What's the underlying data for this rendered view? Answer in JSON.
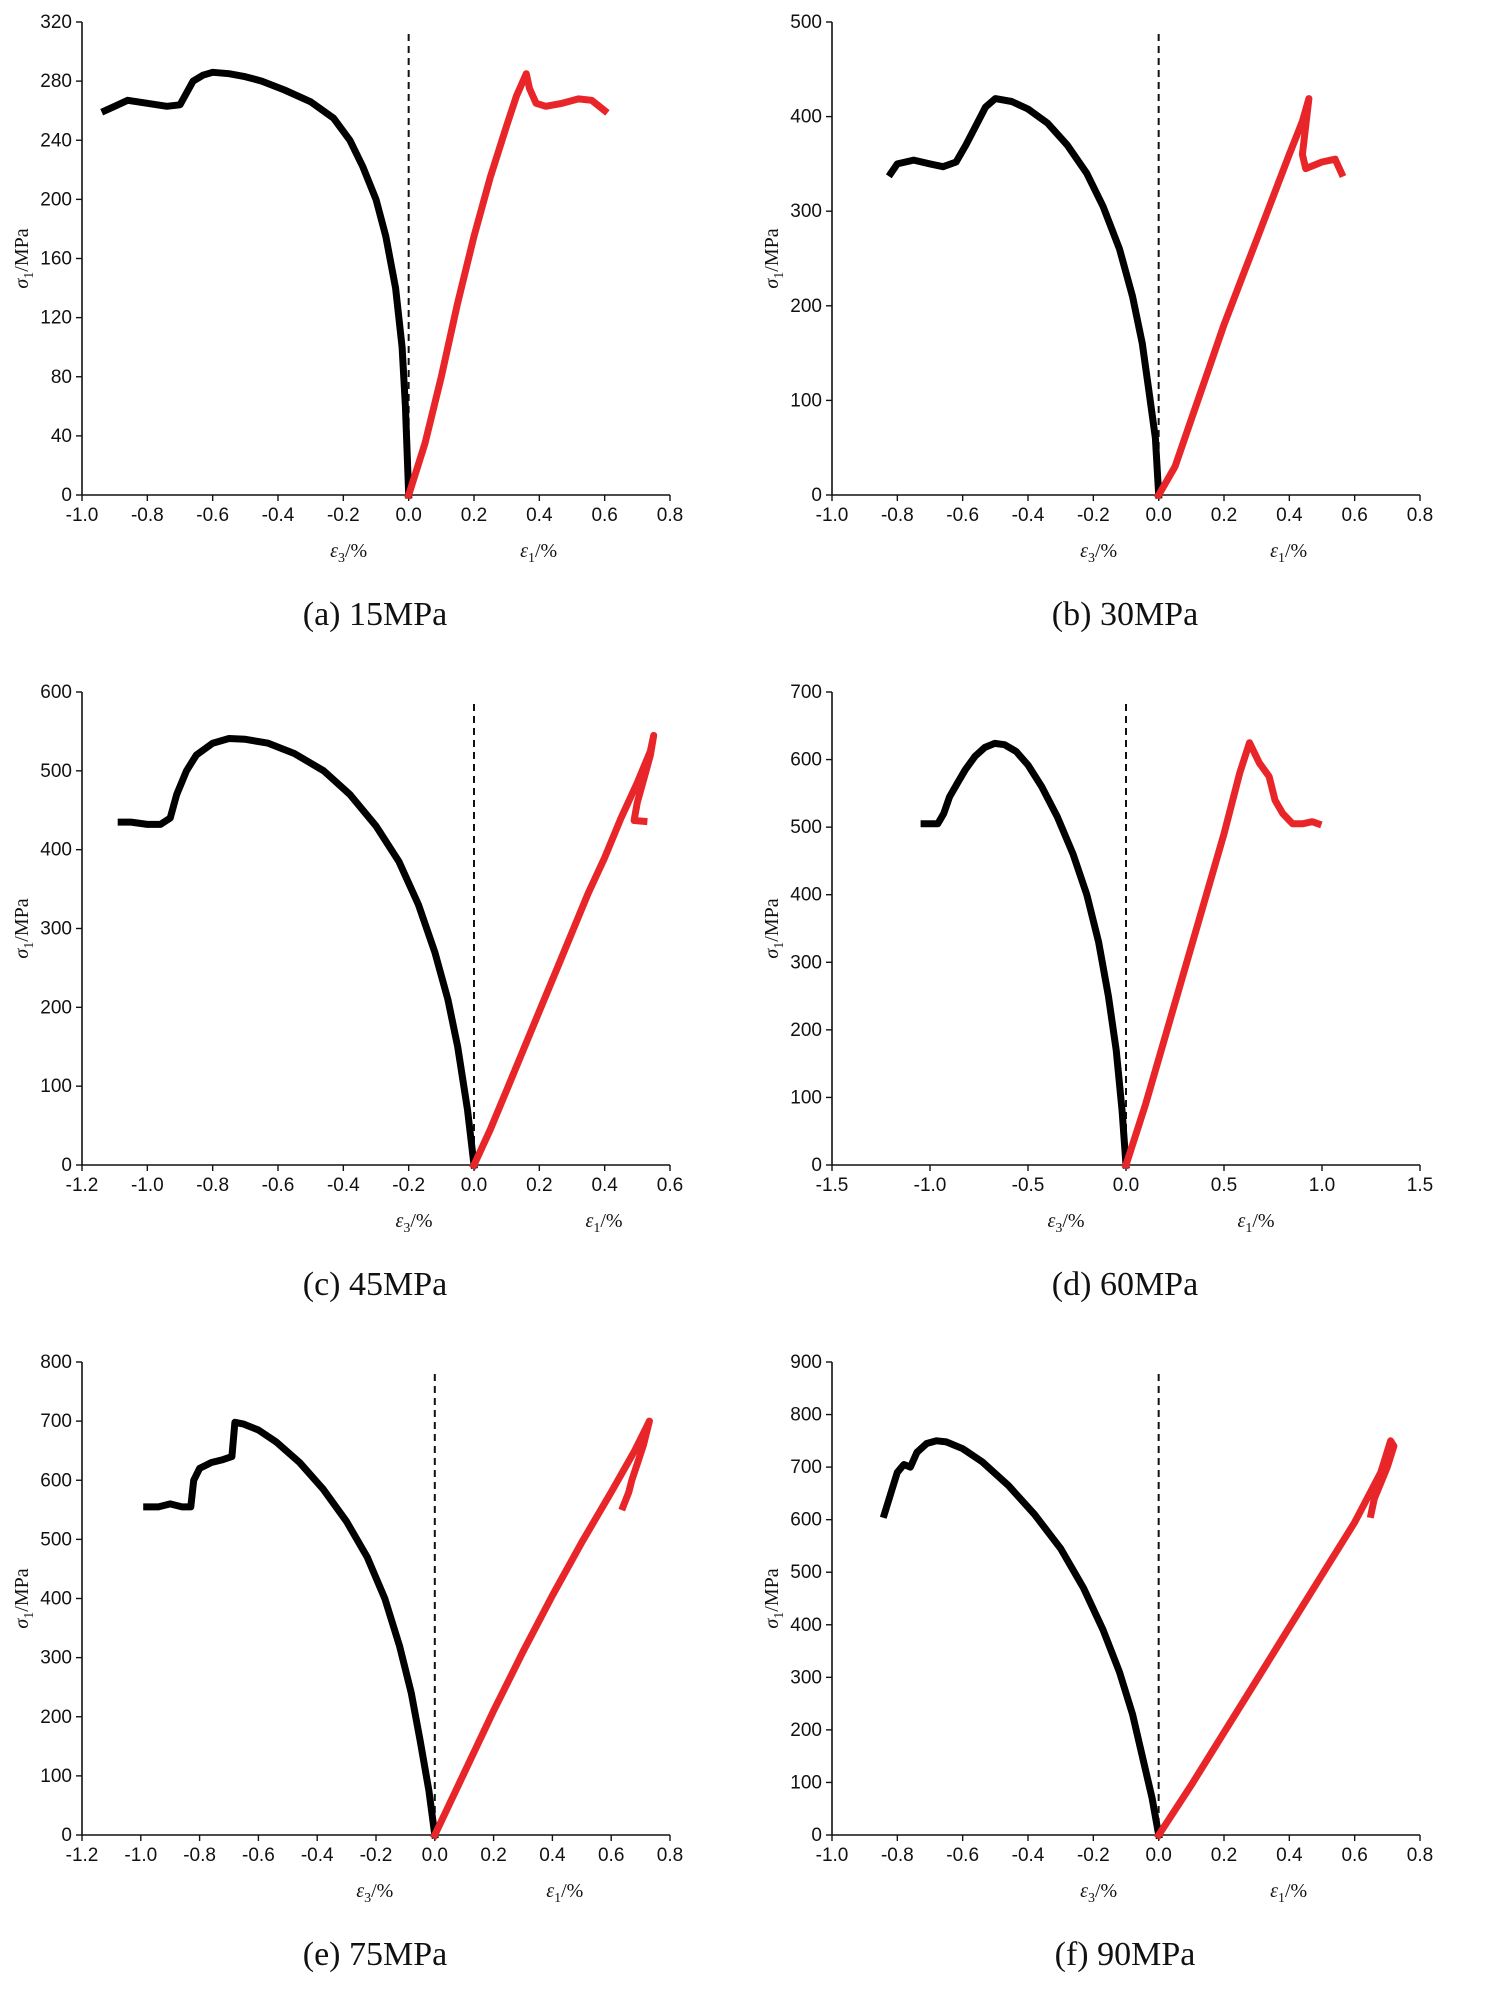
{
  "chart_data": [
    {
      "type": "line",
      "caption": "(a) 15MPa",
      "ylabel_sym": "σ",
      "ylabel_sub": "1",
      "ylabel_unit": "/MPa",
      "xlabel_left_sym": "ε",
      "xlabel_left_sub": "3",
      "xlabel_left_unit": "/%",
      "xlabel_right_sym": "ε",
      "xlabel_right_sub": "1",
      "xlabel_right_unit": "/%",
      "xlim": [
        -1.0,
        0.8
      ],
      "ylim": [
        0,
        320
      ],
      "xticks": [
        -1.0,
        -0.8,
        -0.6,
        -0.4,
        -0.2,
        0.0,
        0.2,
        0.4,
        0.6,
        0.8
      ],
      "xtick_labels": [
        "-1.0",
        "-0.8",
        "-0.6",
        "-0.4",
        "-0.2",
        "0.0",
        "0.2",
        "0.4",
        "0.6",
        "0.8"
      ],
      "yticks": [
        0,
        40,
        80,
        120,
        160,
        200,
        240,
        280,
        320
      ],
      "ytick_labels": [
        "0",
        "40",
        "80",
        "120",
        "160",
        "200",
        "240",
        "280",
        "320"
      ],
      "reference_line_x": 0.0,
      "series": [
        {
          "name": "ε3",
          "color": "#000000",
          "x": [
            0.0,
            -0.01,
            -0.02,
            -0.04,
            -0.07,
            -0.1,
            -0.14,
            -0.18,
            -0.23,
            -0.3,
            -0.38,
            -0.45,
            -0.5,
            -0.55,
            -0.6,
            -0.63,
            -0.66,
            -0.7,
            -0.74,
            -0.8,
            -0.86,
            -0.9,
            -0.93
          ],
          "y": [
            0,
            60,
            100,
            140,
            175,
            200,
            222,
            240,
            255,
            266,
            274,
            280,
            283,
            285,
            286,
            284,
            280,
            264,
            263,
            265,
            267,
            263,
            260
          ]
        },
        {
          "name": "ε1",
          "color": "#e8262a",
          "x": [
            0.0,
            0.05,
            0.1,
            0.15,
            0.2,
            0.25,
            0.3,
            0.33,
            0.36,
            0.37,
            0.39,
            0.42,
            0.47,
            0.52,
            0.56,
            0.6
          ],
          "y": [
            0,
            35,
            80,
            130,
            175,
            215,
            250,
            270,
            285,
            275,
            265,
            263,
            265,
            268,
            267,
            260
          ]
        }
      ]
    },
    {
      "type": "line",
      "caption": "(b) 30MPa",
      "ylabel_sym": "σ",
      "ylabel_sub": "1",
      "ylabel_unit": "/MPa",
      "xlabel_left_sym": "ε",
      "xlabel_left_sub": "3",
      "xlabel_left_unit": "/%",
      "xlabel_right_sym": "ε",
      "xlabel_right_sub": "1",
      "xlabel_right_unit": "/%",
      "xlim": [
        -1.0,
        0.8
      ],
      "ylim": [
        0,
        500
      ],
      "xticks": [
        -1.0,
        -0.8,
        -0.6,
        -0.4,
        -0.2,
        0.0,
        0.2,
        0.4,
        0.6,
        0.8
      ],
      "xtick_labels": [
        "-1.0",
        "-0.8",
        "-0.6",
        "-0.4",
        "-0.2",
        "0.0",
        "0.2",
        "0.4",
        "0.6",
        "0.8"
      ],
      "yticks": [
        0,
        100,
        200,
        300,
        400,
        500
      ],
      "ytick_labels": [
        "0",
        "100",
        "200",
        "300",
        "400",
        "500"
      ],
      "reference_line_x": 0.0,
      "series": [
        {
          "name": "ε3",
          "color": "#000000",
          "x": [
            0.0,
            -0.01,
            -0.03,
            -0.05,
            -0.08,
            -0.12,
            -0.17,
            -0.22,
            -0.28,
            -0.34,
            -0.4,
            -0.45,
            -0.5,
            -0.53,
            -0.56,
            -0.59,
            -0.62,
            -0.66,
            -0.7,
            -0.75,
            -0.8,
            -0.82
          ],
          "y": [
            0,
            60,
            110,
            160,
            210,
            260,
            305,
            340,
            370,
            393,
            408,
            416,
            419,
            410,
            390,
            370,
            352,
            347,
            350,
            354,
            350,
            340
          ]
        },
        {
          "name": "ε1",
          "color": "#e8262a",
          "x": [
            0.0,
            0.05,
            0.1,
            0.15,
            0.2,
            0.25,
            0.3,
            0.35,
            0.4,
            0.44,
            0.46,
            0.45,
            0.44,
            0.45,
            0.5,
            0.54,
            0.56
          ],
          "y": [
            0,
            30,
            80,
            130,
            180,
            225,
            270,
            315,
            360,
            395,
            419,
            390,
            360,
            345,
            352,
            355,
            340
          ]
        }
      ]
    },
    {
      "type": "line",
      "caption": "(c) 45MPa",
      "ylabel_sym": "σ",
      "ylabel_sub": "1",
      "ylabel_unit": "/MPa",
      "xlabel_left_sym": "ε",
      "xlabel_left_sub": "3",
      "xlabel_left_unit": "/%",
      "xlabel_right_sym": "ε",
      "xlabel_right_sub": "1",
      "xlabel_right_unit": "/%",
      "xlim": [
        -1.2,
        0.6
      ],
      "ylim": [
        0,
        600
      ],
      "xticks": [
        -1.2,
        -1.0,
        -0.8,
        -0.6,
        -0.4,
        -0.2,
        0.0,
        0.2,
        0.4,
        0.6
      ],
      "xtick_labels": [
        "-1.2",
        "-1.0",
        "-0.8",
        "-0.6",
        "-0.4",
        "-0.2",
        "0.0",
        "0.2",
        "0.4",
        "0.6"
      ],
      "yticks": [
        0,
        100,
        200,
        300,
        400,
        500,
        600
      ],
      "ytick_labels": [
        "0",
        "100",
        "200",
        "300",
        "400",
        "500",
        "600"
      ],
      "reference_line_x": 0.0,
      "series": [
        {
          "name": "ε3",
          "color": "#000000",
          "x": [
            0.0,
            -0.02,
            -0.05,
            -0.08,
            -0.12,
            -0.17,
            -0.23,
            -0.3,
            -0.38,
            -0.46,
            -0.55,
            -0.63,
            -0.7,
            -0.75,
            -0.8,
            -0.85,
            -0.88,
            -0.91,
            -0.93,
            -0.96,
            -1.0,
            -1.05,
            -1.08
          ],
          "y": [
            0,
            70,
            150,
            210,
            270,
            330,
            385,
            430,
            470,
            500,
            522,
            535,
            540,
            541,
            535,
            520,
            500,
            470,
            440,
            432,
            432,
            435,
            435
          ]
        },
        {
          "name": "ε1",
          "color": "#e8262a",
          "x": [
            0.0,
            0.05,
            0.1,
            0.15,
            0.2,
            0.25,
            0.3,
            0.35,
            0.4,
            0.45,
            0.5,
            0.54,
            0.55,
            0.54,
            0.52,
            0.5,
            0.49,
            0.52
          ],
          "y": [
            0,
            45,
            95,
            145,
            195,
            245,
            295,
            345,
            390,
            440,
            485,
            525,
            545,
            520,
            490,
            460,
            437,
            436
          ]
        }
      ]
    },
    {
      "type": "line",
      "caption": "(d) 60MPa",
      "ylabel_sym": "σ",
      "ylabel_sub": "1",
      "ylabel_unit": "/MPa",
      "xlabel_left_sym": "ε",
      "xlabel_left_sub": "3",
      "xlabel_left_unit": "/%",
      "xlabel_right_sym": "ε",
      "xlabel_right_sub": "1",
      "xlabel_right_unit": "/%",
      "xlim": [
        -1.5,
        1.5
      ],
      "ylim": [
        0,
        700
      ],
      "xticks": [
        -1.5,
        -1.0,
        -0.5,
        0.0,
        0.5,
        1.0,
        1.5
      ],
      "xtick_labels": [
        "-1.5",
        "-1.0",
        "-0.5",
        "0.0",
        "0.5",
        "1.0",
        "1.5"
      ],
      "yticks": [
        0,
        100,
        200,
        300,
        400,
        500,
        600,
        700
      ],
      "ytick_labels": [
        "0",
        "100",
        "200",
        "300",
        "400",
        "500",
        "600",
        "700"
      ],
      "reference_line_x": 0.0,
      "series": [
        {
          "name": "ε3",
          "color": "#000000",
          "x": [
            0.0,
            -0.02,
            -0.05,
            -0.09,
            -0.14,
            -0.2,
            -0.27,
            -0.35,
            -0.43,
            -0.5,
            -0.56,
            -0.62,
            -0.67,
            -0.72,
            -0.77,
            -0.82,
            -0.86,
            -0.9,
            -0.93,
            -0.96,
            -1.0,
            -1.03
          ],
          "y": [
            0,
            80,
            170,
            250,
            330,
            400,
            460,
            515,
            560,
            592,
            612,
            622,
            624,
            618,
            605,
            585,
            565,
            545,
            520,
            505,
            505,
            505
          ]
        },
        {
          "name": "ε1",
          "color": "#e8262a",
          "x": [
            0.0,
            0.1,
            0.2,
            0.3,
            0.4,
            0.5,
            0.58,
            0.63,
            0.68,
            0.73,
            0.76,
            0.8,
            0.85,
            0.9,
            0.95,
            0.98
          ],
          "y": [
            0,
            90,
            190,
            290,
            390,
            490,
            580,
            625,
            595,
            575,
            540,
            520,
            505,
            505,
            508,
            505
          ]
        }
      ]
    },
    {
      "type": "line",
      "caption": "(e) 75MPa",
      "ylabel_sym": "σ",
      "ylabel_sub": "1",
      "ylabel_unit": "/MPa",
      "xlabel_left_sym": "ε",
      "xlabel_left_sub": "3",
      "xlabel_left_unit": "/%",
      "xlabel_right_sym": "ε",
      "xlabel_right_sub": "1",
      "xlabel_right_unit": "/%",
      "xlim": [
        -1.2,
        0.8
      ],
      "ylim": [
        0,
        800
      ],
      "xticks": [
        -1.2,
        -1.0,
        -0.8,
        -0.6,
        -0.4,
        -0.2,
        0.0,
        0.2,
        0.4,
        0.6,
        0.8
      ],
      "xtick_labels": [
        "-1.2",
        "-1.0",
        "-0.8",
        "-0.6",
        "-0.4",
        "-0.2",
        "0.0",
        "0.2",
        "0.4",
        "0.6",
        "0.8"
      ],
      "yticks": [
        0,
        100,
        200,
        300,
        400,
        500,
        600,
        700,
        800
      ],
      "ytick_labels": [
        "0",
        "100",
        "200",
        "300",
        "400",
        "500",
        "600",
        "700",
        "800"
      ],
      "reference_line_x": 0.0,
      "series": [
        {
          "name": "ε3",
          "color": "#000000",
          "x": [
            0.0,
            -0.02,
            -0.05,
            -0.08,
            -0.12,
            -0.17,
            -0.23,
            -0.3,
            -0.38,
            -0.46,
            -0.54,
            -0.6,
            -0.65,
            -0.68,
            -0.69,
            -0.72,
            -0.76,
            -0.8,
            -0.82,
            -0.83,
            -0.86,
            -0.9,
            -0.94,
            -0.98
          ],
          "y": [
            0,
            75,
            160,
            240,
            320,
            400,
            470,
            530,
            585,
            630,
            665,
            685,
            695,
            698,
            640,
            635,
            630,
            620,
            600,
            555,
            555,
            560,
            555,
            555
          ]
        },
        {
          "name": "ε1",
          "color": "#e8262a",
          "x": [
            0.0,
            0.1,
            0.2,
            0.3,
            0.4,
            0.5,
            0.6,
            0.68,
            0.72,
            0.73,
            0.71,
            0.69,
            0.67,
            0.66,
            0.64
          ],
          "y": [
            0,
            105,
            210,
            310,
            405,
            495,
            580,
            650,
            690,
            700,
            660,
            630,
            600,
            580,
            555
          ]
        }
      ]
    },
    {
      "type": "line",
      "caption": "(f) 90MPa",
      "ylabel_sym": "σ",
      "ylabel_sub": "1",
      "ylabel_unit": "/MPa",
      "xlabel_left_sym": "ε",
      "xlabel_left_sub": "3",
      "xlabel_left_unit": "/%",
      "xlabel_right_sym": "ε",
      "xlabel_right_sub": "1",
      "xlabel_right_unit": "/%",
      "xlim": [
        -1.0,
        0.8
      ],
      "ylim": [
        0,
        900
      ],
      "xticks": [
        -1.0,
        -0.8,
        -0.6,
        -0.4,
        -0.2,
        0.0,
        0.2,
        0.4,
        0.6,
        0.8
      ],
      "xtick_labels": [
        "-1.0",
        "-0.8",
        "-0.6",
        "-0.4",
        "-0.2",
        "0.0",
        "0.2",
        "0.4",
        "0.6",
        "0.8"
      ],
      "yticks": [
        0,
        100,
        200,
        300,
        400,
        500,
        600,
        700,
        800,
        900
      ],
      "ytick_labels": [
        "0",
        "100",
        "200",
        "300",
        "400",
        "500",
        "600",
        "700",
        "800",
        "900"
      ],
      "reference_line_x": 0.0,
      "series": [
        {
          "name": "ε3",
          "color": "#000000",
          "x": [
            0.0,
            -0.02,
            -0.05,
            -0.08,
            -0.12,
            -0.17,
            -0.23,
            -0.3,
            -0.38,
            -0.46,
            -0.54,
            -0.6,
            -0.65,
            -0.68,
            -0.71,
            -0.74,
            -0.76,
            -0.78,
            -0.8,
            -0.82,
            -0.84
          ],
          "y": [
            0,
            70,
            150,
            230,
            310,
            390,
            470,
            545,
            610,
            665,
            710,
            735,
            748,
            750,
            745,
            728,
            700,
            705,
            690,
            650,
            610
          ]
        },
        {
          "name": "ε1",
          "color": "#e8262a",
          "x": [
            0.0,
            0.1,
            0.2,
            0.3,
            0.4,
            0.5,
            0.6,
            0.68,
            0.71,
            0.72,
            0.71,
            0.7,
            0.68,
            0.66,
            0.65
          ],
          "y": [
            0,
            95,
            195,
            295,
            395,
            495,
            595,
            690,
            750,
            740,
            720,
            700,
            670,
            640,
            610
          ]
        }
      ]
    }
  ]
}
